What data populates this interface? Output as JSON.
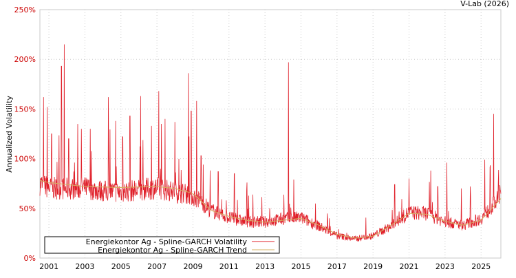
{
  "chart_data": {
    "type": "line",
    "title": "",
    "source_label": "V-Lab (2026)",
    "xlabel": "",
    "ylabel": "Annualized Volatility",
    "xlim": [
      2000.5,
      2026.1
    ],
    "ylim": [
      0,
      250
    ],
    "grid": true,
    "y_ticks": [
      0,
      50,
      100,
      150,
      200,
      250
    ],
    "y_tick_labels": [
      "0%",
      "50%",
      "100%",
      "150%",
      "200%",
      "250%"
    ],
    "x_ticks": [
      2001,
      2003,
      2005,
      2007,
      2009,
      2011,
      2013,
      2015,
      2017,
      2019,
      2021,
      2023,
      2025
    ],
    "x_tick_labels": [
      "2001",
      "2003",
      "2005",
      "2007",
      "2009",
      "2011",
      "2013",
      "2015",
      "2017",
      "2019",
      "2021",
      "2023",
      "2025"
    ],
    "legend_position": "bottom-left",
    "colors": {
      "volatility": "#e0202a",
      "trend": "#d4b060",
      "axis_label": "#cc0000"
    },
    "series": [
      {
        "name": "Energiekontor Ag - Spline-GARCH Volatility",
        "base": [
          [
            2000.5,
            70
          ],
          [
            2001,
            66
          ],
          [
            2002,
            65
          ],
          [
            2003,
            66
          ],
          [
            2004,
            63
          ],
          [
            2005,
            62
          ],
          [
            2006,
            64
          ],
          [
            2007,
            66
          ],
          [
            2008,
            62
          ],
          [
            2008.8,
            60
          ],
          [
            2009.3,
            55
          ],
          [
            2010,
            45
          ],
          [
            2011,
            38
          ],
          [
            2012,
            34
          ],
          [
            2013,
            34
          ],
          [
            2014,
            37
          ],
          [
            2015,
            38
          ],
          [
            2016,
            30
          ],
          [
            2017,
            21
          ],
          [
            2018,
            18
          ],
          [
            2019,
            21
          ],
          [
            2020,
            30
          ],
          [
            2021,
            43
          ],
          [
            2022,
            42
          ],
          [
            2023,
            34
          ],
          [
            2024,
            31
          ],
          [
            2025,
            37
          ],
          [
            2026.1,
            58
          ]
        ],
        "spikes": [
          [
            2000.7,
            162
          ],
          [
            2000.9,
            152
          ],
          [
            2001.15,
            125
          ],
          [
            2001.7,
            193
          ],
          [
            2001.85,
            215
          ],
          [
            2002.1,
            120
          ],
          [
            2002.6,
            135
          ],
          [
            2002.8,
            130
          ],
          [
            2003.3,
            130
          ],
          [
            2004.3,
            162
          ],
          [
            2004.7,
            138
          ],
          [
            2005.1,
            122
          ],
          [
            2005.5,
            143
          ],
          [
            2006.1,
            163
          ],
          [
            2006.7,
            133
          ],
          [
            2007.1,
            168
          ],
          [
            2007.45,
            140
          ],
          [
            2008.0,
            137
          ],
          [
            2008.75,
            186
          ],
          [
            2008.9,
            148
          ],
          [
            2009.2,
            158
          ],
          [
            2009.45,
            103
          ],
          [
            2010.4,
            87
          ],
          [
            2011.3,
            85
          ],
          [
            2012.0,
            76
          ],
          [
            2014.3,
            197
          ],
          [
            2014.6,
            79
          ],
          [
            2020.2,
            74
          ],
          [
            2021.0,
            80
          ],
          [
            2022.2,
            88
          ],
          [
            2022.6,
            72
          ],
          [
            2023.1,
            96
          ],
          [
            2023.9,
            70
          ],
          [
            2024.4,
            72
          ],
          [
            2025.2,
            99
          ],
          [
            2025.7,
            145
          ],
          [
            2025.95,
            76
          ]
        ]
      },
      {
        "name": "Energiekontor Ag - Spline-GARCH Trend",
        "points": [
          [
            2000.5,
            78
          ],
          [
            2001,
            76
          ],
          [
            2003,
            72
          ],
          [
            2005,
            71
          ],
          [
            2007,
            72
          ],
          [
            2008,
            70
          ],
          [
            2009,
            65
          ],
          [
            2010,
            48
          ],
          [
            2011,
            42
          ],
          [
            2012,
            38
          ],
          [
            2013,
            36
          ],
          [
            2014,
            38
          ],
          [
            2015,
            40
          ],
          [
            2016,
            33
          ],
          [
            2017,
            24
          ],
          [
            2018,
            20
          ],
          [
            2019,
            22
          ],
          [
            2020,
            33
          ],
          [
            2021,
            45
          ],
          [
            2022,
            44
          ],
          [
            2023,
            37
          ],
          [
            2024,
            33
          ],
          [
            2025,
            38
          ],
          [
            2026.1,
            60
          ]
        ]
      }
    ]
  }
}
